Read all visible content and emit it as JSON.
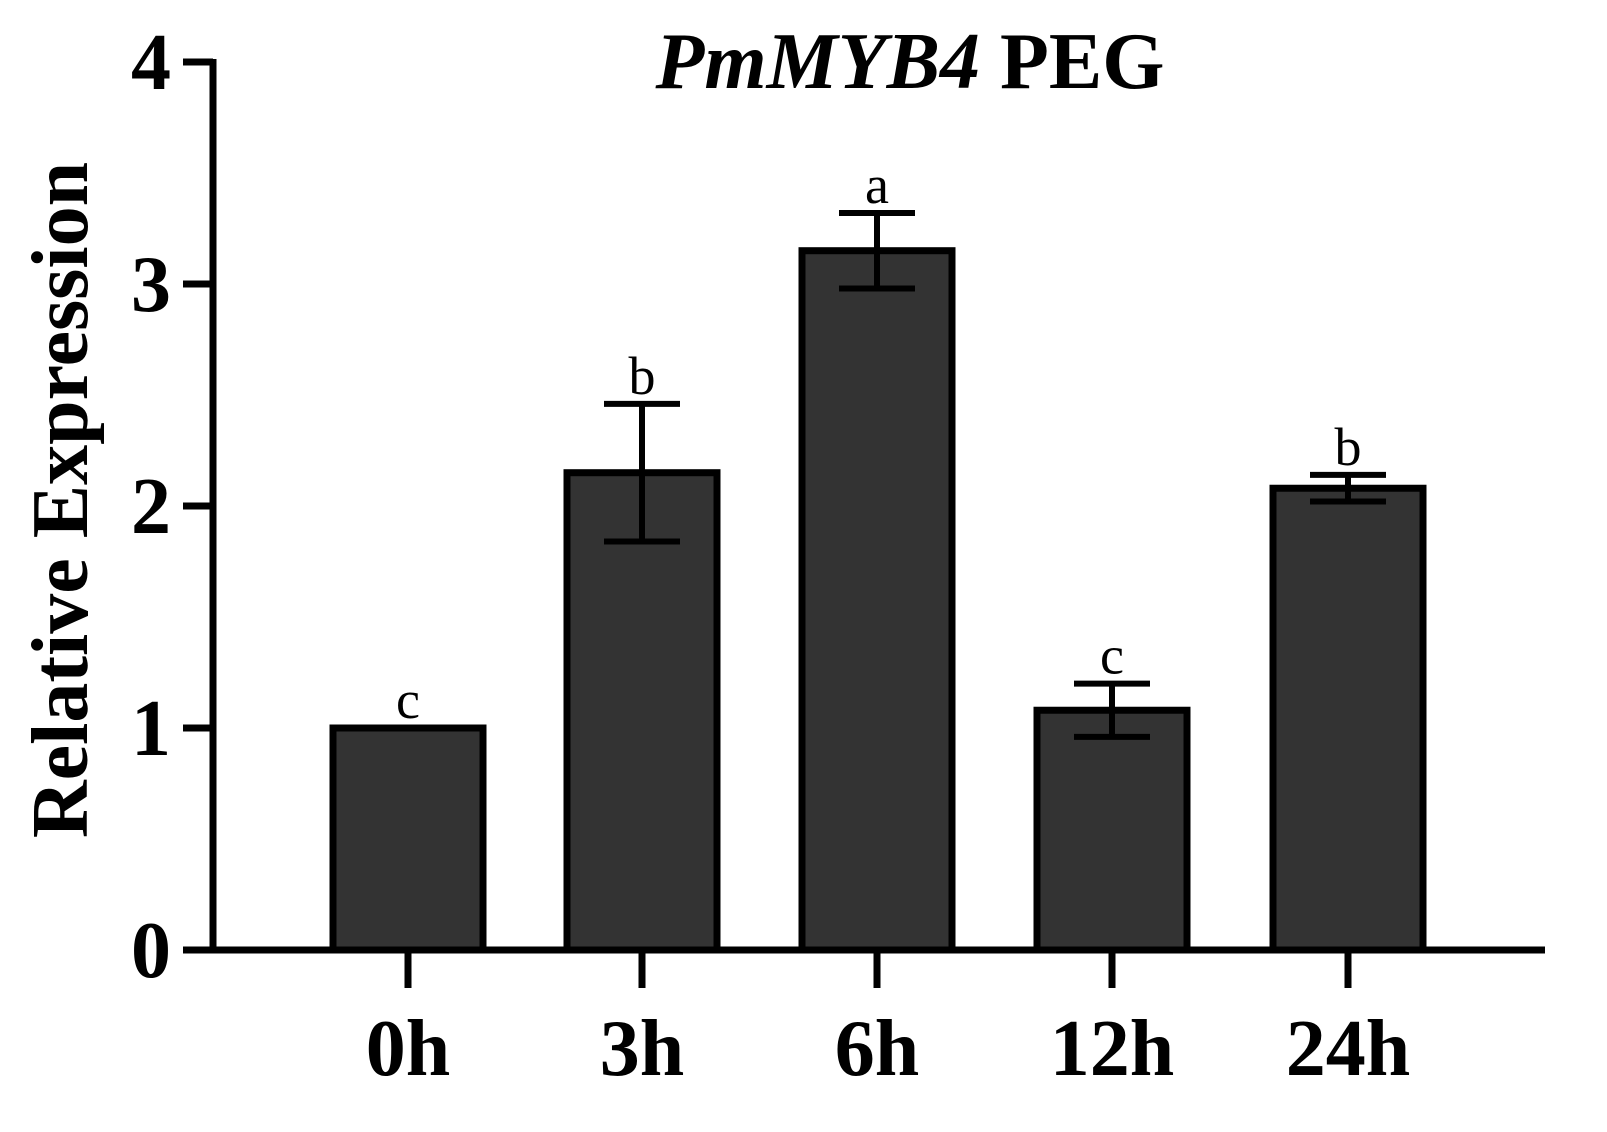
{
  "chart_data": {
    "type": "bar",
    "title": {
      "gene": "PmMYB4",
      "condition": "PEG"
    },
    "xlabel": "",
    "ylabel": "Relative Expression",
    "ylim": [
      0,
      4
    ],
    "yticks": [
      "0",
      "1",
      "2",
      "3",
      "4"
    ],
    "categories": [
      "0h",
      "3h",
      "6h",
      "12h",
      "24h"
    ],
    "values": [
      1.0,
      2.15,
      3.15,
      1.08,
      2.08
    ],
    "errors": [
      0.0,
      0.31,
      0.17,
      0.12,
      0.06
    ],
    "significance": [
      "c",
      "b",
      "a",
      "c",
      "b"
    ],
    "bar_color": "#333333",
    "bar_edge_color": "#000000",
    "grid": false,
    "legend": "none"
  }
}
